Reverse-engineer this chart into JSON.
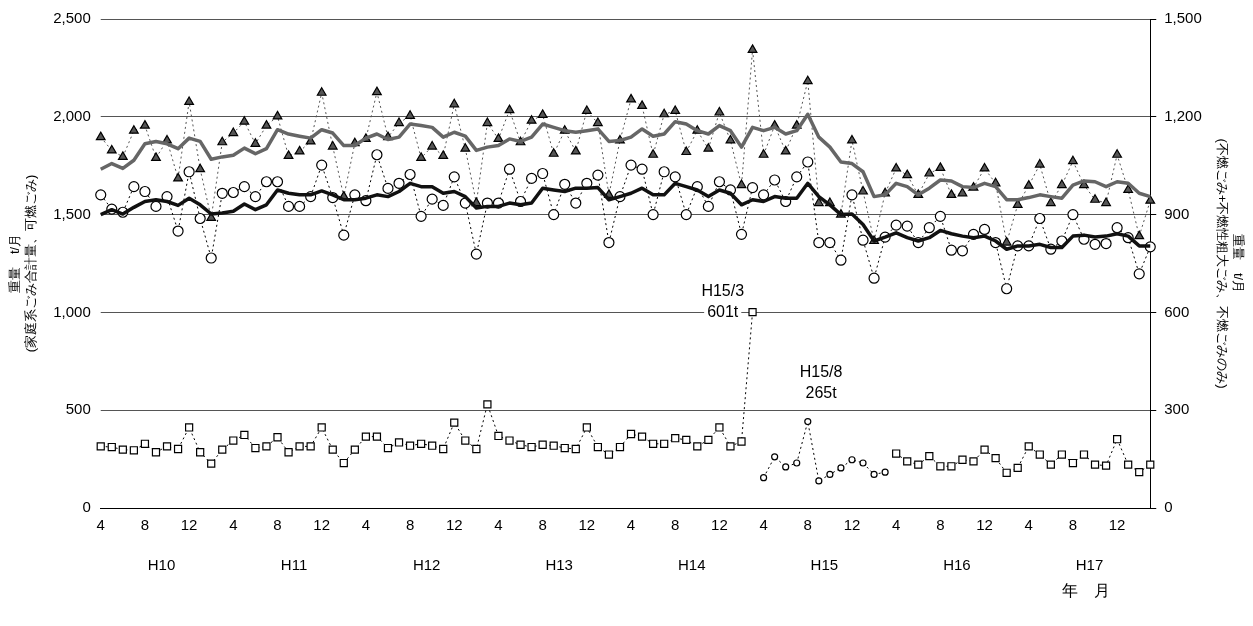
{
  "chart_data": {
    "type": "line",
    "categories": [
      "4",
      null,
      null,
      null,
      "8",
      null,
      null,
      null,
      "12",
      null,
      null,
      null,
      "4",
      null,
      null,
      null,
      "8",
      null,
      null,
      null,
      "12",
      null,
      null,
      null,
      "4",
      null,
      null,
      null,
      "8",
      null,
      null,
      null,
      "12",
      null,
      null,
      null,
      "4",
      null,
      null,
      null,
      "8",
      null,
      null,
      null,
      "12",
      null,
      null,
      null,
      "4",
      null,
      null,
      null,
      "8",
      null,
      null,
      null,
      "12",
      null,
      null,
      null,
      "4",
      null,
      null,
      null,
      "8",
      null,
      null,
      null,
      "12",
      null,
      null,
      null,
      "4",
      null,
      null,
      null,
      "8",
      null,
      null,
      null,
      "12",
      null,
      null,
      null,
      "4",
      null,
      null,
      null,
      "8",
      null,
      null,
      null,
      "12",
      null,
      null,
      null
    ],
    "xlabel": "年　月",
    "ylabel": "重量　t/月\n(家庭系ごみ合計量、可燃ごみ)",
    "y2label": "重量　t/月\n(不燃ごみ+不燃性粗大ごみ、不燃ごみのみ)",
    "ylim": [
      0,
      2500
    ],
    "yticks": [
      0,
      500,
      {
        "value": 1000,
        "label": "1,000"
      },
      {
        "value": 1500,
        "label": "1,500"
      },
      {
        "value": 2000,
        "label": "2,000"
      },
      {
        "value": 2500,
        "label": "2,500"
      }
    ],
    "y2lim": [
      0,
      1500
    ],
    "y2ticks": [
      0,
      300,
      600,
      900,
      {
        "value": 1200,
        "label": "1,200"
      },
      {
        "value": 1500,
        "label": "1,500"
      }
    ],
    "grid": "y",
    "legend": false,
    "series": [
      {
        "color": "#555555",
        "marker": "triangle",
        "line_style": "dotted",
        "values": [
          1896,
          1828,
          1795,
          1929,
          1955,
          1790,
          1879,
          1685,
          2076,
          1732,
          1483,
          1870,
          1917,
          1975,
          1862,
          1955,
          2002,
          1800,
          1823,
          1874,
          2123,
          1848,
          1592,
          1865,
          1887,
          2126,
          1896,
          1968,
          2005,
          1790,
          1848,
          1800,
          2064,
          1837,
          1559,
          1968,
          1887,
          2034,
          1870,
          1980,
          2010,
          1811,
          1929,
          1823,
          2030,
          1968,
          1601,
          1879,
          2089,
          2056,
          1806,
          2013,
          2030,
          1820,
          1929,
          1837,
          2022,
          1879,
          1651,
          2342,
          1806,
          1955,
          1823,
          1955,
          2182,
          1559,
          1559,
          1500,
          1879,
          1618,
          1365,
          1609,
          1736,
          1702,
          1601,
          1710,
          1739,
          1601,
          1609,
          1638,
          1736,
          1660,
          1357,
          1550,
          1648,
          1756,
          1559,
          1651,
          1773,
          1651,
          1576,
          1559,
          1806,
          1626,
          1390,
          1571
        ]
      },
      {
        "color": "#000000",
        "marker": "circle",
        "line_style": "dotted",
        "values": [
          1601,
          1528,
          1512,
          1643,
          1618,
          1542,
          1592,
          1416,
          1719,
          1480,
          1278,
          1609,
          1613,
          1643,
          1592,
          1668,
          1668,
          1542,
          1542,
          1592,
          1753,
          1587,
          1395,
          1601,
          1571,
          1806,
          1634,
          1660,
          1705,
          1491,
          1579,
          1547,
          1693,
          1559,
          1298,
          1559,
          1559,
          1732,
          1567,
          1685,
          1710,
          1500,
          1655,
          1559,
          1660,
          1702,
          1357,
          1592,
          1753,
          1732,
          1500,
          1719,
          1693,
          1500,
          1643,
          1542,
          1668,
          1626,
          1399,
          1638,
          1601,
          1677,
          1567,
          1693,
          1769,
          1357,
          1357,
          1267,
          1601,
          1369,
          1175,
          1385,
          1446,
          1441,
          1357,
          1433,
          1491,
          1318,
          1315,
          1399,
          1424,
          1357,
          1121,
          1340,
          1340,
          1480,
          1323,
          1365,
          1500,
          1374,
          1348,
          1352,
          1433,
          1382,
          1197,
          1335
        ]
      },
      {
        "color": "#666666",
        "marker": "none",
        "line_style": "solid",
        "values": [
          1732,
          1761,
          1736,
          1778,
          1862,
          1874,
          1862,
          1837,
          1891,
          1874,
          1783,
          1795,
          1803,
          1840,
          1811,
          1837,
          1934,
          1912,
          1901,
          1891,
          1934,
          1917,
          1853,
          1853,
          1891,
          1912,
          1884,
          1896,
          1963,
          1955,
          1946,
          1896,
          1921,
          1901,
          1828,
          1845,
          1853,
          1887,
          1874,
          1896,
          1963,
          1946,
          1929,
          1921,
          1929,
          1938,
          1874,
          1879,
          1896,
          1938,
          1901,
          1912,
          1975,
          1963,
          1929,
          1912,
          1955,
          1929,
          1845,
          1946,
          1929,
          1946,
          1912,
          1929,
          2013,
          1896,
          1845,
          1769,
          1761,
          1719,
          1592,
          1601,
          1660,
          1643,
          1601,
          1635,
          1677,
          1672,
          1643,
          1638,
          1660,
          1643,
          1576,
          1576,
          1587,
          1601,
          1592,
          1584,
          1651,
          1672,
          1668,
          1643,
          1668,
          1660,
          1609,
          1592
        ]
      },
      {
        "color": "#111111",
        "marker": "none",
        "line_style": "solid",
        "values": [
          1500,
          1525,
          1503,
          1537,
          1567,
          1576,
          1567,
          1547,
          1584,
          1550,
          1503,
          1508,
          1517,
          1554,
          1525,
          1550,
          1626,
          1609,
          1601,
          1601,
          1621,
          1601,
          1576,
          1576,
          1584,
          1601,
          1592,
          1618,
          1660,
          1643,
          1643,
          1609,
          1618,
          1592,
          1534,
          1542,
          1542,
          1559,
          1550,
          1559,
          1635,
          1626,
          1618,
          1635,
          1635,
          1638,
          1576,
          1592,
          1609,
          1635,
          1601,
          1601,
          1660,
          1643,
          1626,
          1592,
          1626,
          1609,
          1550,
          1576,
          1567,
          1592,
          1584,
          1584,
          1660,
          1592,
          1550,
          1500,
          1503,
          1449,
          1365,
          1385,
          1407,
          1382,
          1365,
          1382,
          1419,
          1402,
          1390,
          1382,
          1390,
          1365,
          1323,
          1340,
          1340,
          1348,
          1332,
          1332,
          1390,
          1395,
          1385,
          1390,
          1402,
          1390,
          1340,
          1340
        ]
      },
      {
        "axis": "y2",
        "color": "#000000",
        "marker": "square",
        "line_style": "dotted",
        "values": [
          189,
          187,
          179,
          177,
          197,
          171,
          189,
          181,
          247,
          171,
          136,
          179,
          207,
          224,
          184,
          189,
          217,
          171,
          189,
          189,
          247,
          179,
          138,
          179,
          219,
          219,
          184,
          201,
          191,
          197,
          191,
          181,
          262,
          207,
          181,
          318,
          221,
          207,
          194,
          187,
          194,
          191,
          184,
          181,
          247,
          187,
          164,
          187,
          227,
          219,
          197,
          197,
          214,
          209,
          189,
          209,
          247,
          189,
          204,
          601,
          null,
          null,
          null,
          null,
          null,
          null,
          null,
          null,
          null,
          null,
          null,
          null,
          167,
          143,
          133,
          159,
          128,
          128,
          148,
          143,
          179,
          153,
          108,
          123,
          189,
          164,
          133,
          164,
          138,
          164,
          133,
          130,
          211,
          133,
          110,
          133
        ]
      },
      {
        "axis": "y2",
        "color": "#000000",
        "marker": "circle",
        "line_style": "dotted",
        "values": [
          null,
          null,
          null,
          null,
          null,
          null,
          null,
          null,
          null,
          null,
          null,
          null,
          null,
          null,
          null,
          null,
          null,
          null,
          null,
          null,
          null,
          null,
          null,
          null,
          null,
          null,
          null,
          null,
          null,
          null,
          null,
          null,
          null,
          null,
          null,
          null,
          null,
          null,
          null,
          null,
          null,
          null,
          null,
          null,
          null,
          null,
          null,
          null,
          null,
          null,
          null,
          null,
          null,
          null,
          null,
          null,
          null,
          null,
          null,
          null,
          93,
          157,
          126,
          138,
          265,
          83,
          103,
          123,
          148,
          138,
          103,
          110,
          null,
          null,
          null,
          null,
          null,
          null,
          null,
          null,
          null,
          null,
          null,
          null,
          null,
          null,
          null,
          null,
          null,
          null,
          null,
          null,
          null,
          null,
          null,
          null
        ]
      }
    ],
    "annotations": [
      "H10",
      "H11",
      "H12",
      "H13",
      "H14",
      "H15",
      "H16",
      "H17",
      "H15/3\n601t",
      "H15/8\n265t"
    ]
  }
}
